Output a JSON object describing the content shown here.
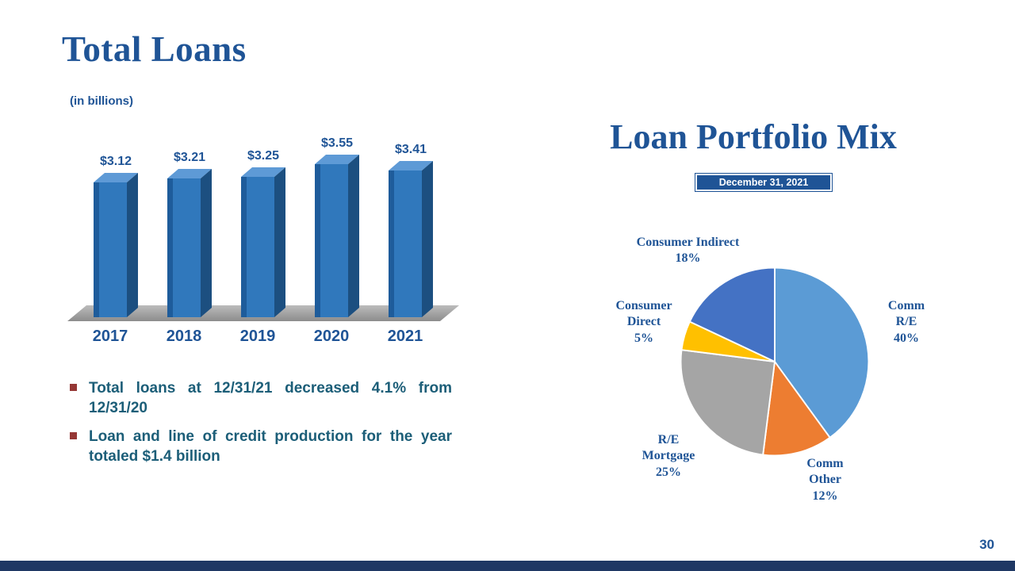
{
  "slide": {
    "left_title": "Total Loans",
    "units_note": "(in billions)",
    "page_number": "30"
  },
  "bullets": {
    "items": [
      "Total loans at 12/31/21 decreased 4.1% from 12/31/20",
      "Loan and line of credit production for the year totaled $1.4 billion"
    ]
  },
  "portfolio": {
    "title": "Loan Portfolio Mix",
    "date_badge": "December 31, 2021"
  },
  "chart_data": [
    {
      "type": "bar",
      "title": "Total Loans",
      "subtitle": "(in billions)",
      "categories": [
        "2017",
        "2018",
        "2019",
        "2020",
        "2021"
      ],
      "values": [
        3.12,
        3.21,
        3.25,
        3.55,
        3.41
      ],
      "value_labels": [
        "$3.12",
        "$3.21",
        "$3.25",
        "$3.55",
        "$3.41"
      ],
      "xlabel": "",
      "ylabel": "",
      "units": "USD billions",
      "ylim": [
        0,
        3.55
      ],
      "grid": false,
      "style": "3d-column",
      "bar_color": "#2E75B6"
    },
    {
      "type": "pie",
      "title": "Loan Portfolio Mix",
      "as_of": "December 31, 2021",
      "direction": "clockwise",
      "start_angle": "12-oclock",
      "slices": [
        {
          "id": "comm-re",
          "name": "Comm R/E",
          "pct": 40,
          "color": "#5B9BD5",
          "label_text": "Comm\nR/E\n40%"
        },
        {
          "id": "comm-other",
          "name": "Comm Other",
          "pct": 12,
          "color": "#ED7D31",
          "label_text": "Comm\nOther\n12%"
        },
        {
          "id": "re-mortgage",
          "name": "R/E Mortgage",
          "pct": 25,
          "color": "#A5A5A5",
          "label_text": "R/E\nMortgage\n25%"
        },
        {
          "id": "consumer-direct",
          "name": "Consumer Direct",
          "pct": 5,
          "color": "#FFC000",
          "label_text": "Consumer\nDirect\n5%"
        },
        {
          "id": "consumer-indirect",
          "name": "Consumer Indirect",
          "pct": 18,
          "color": "#4472C4",
          "label_text": "Consumer Indirect\n18%"
        }
      ]
    }
  ],
  "colors": {
    "heading": "#1F5496",
    "body_text": "#1C5E78",
    "bullet_marker": "#953735",
    "badge_bg": "#1F5496",
    "badge_text": "#FFFFFF",
    "footer_bar": "#1F3864",
    "bar_front": "#3078BC",
    "bar_front_edge": "#1E5C9B",
    "bar_top": "#5E9AD6",
    "bar_side": "#1C4F80",
    "floor": "#9E9E9E"
  }
}
